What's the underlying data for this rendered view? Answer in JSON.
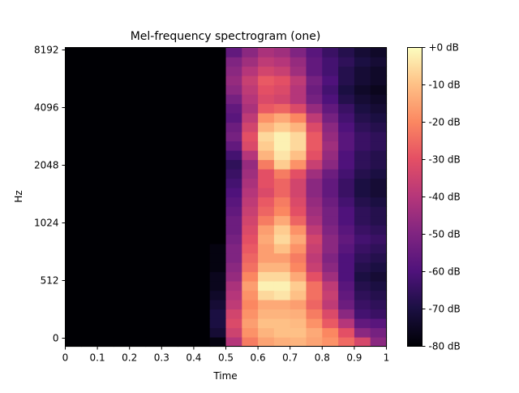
{
  "chart_data": {
    "type": "heatmap",
    "title": "Mel-frequency spectrogram (one)",
    "xlabel": "Time",
    "ylabel": "Hz",
    "x_range": [
      0,
      1
    ],
    "x_ticks": [
      "0",
      "0.1",
      "0.2",
      "0.3",
      "0.4",
      "0.5",
      "0.6",
      "0.7",
      "0.8",
      "0.9",
      "1"
    ],
    "y_ticks": [
      "0",
      "512",
      "1024",
      "2048",
      "4096",
      "8192"
    ],
    "colorbar": {
      "colormap": "magma",
      "range_db": [
        -80,
        0
      ],
      "ticks": [
        "+0 dB",
        "-10 dB",
        "-20 dB",
        "-30 dB",
        "-40 dB",
        "-50 dB",
        "-60 dB",
        "-70 dB",
        "-80 dB"
      ]
    },
    "grid": false,
    "note_values": "dB levels per time frame (columns) and mel band (rows, bottom to top), estimated from colour",
    "time_frames": 20,
    "mel_bands": 32,
    "values_db": [
      [
        -80,
        -80,
        -80,
        -80,
        -80,
        -80,
        -80,
        -80,
        -80,
        -78,
        -40,
        -22,
        -15,
        -13,
        -12,
        -15,
        -18,
        -25,
        -33,
        -48
      ],
      [
        -80,
        -80,
        -80,
        -80,
        -80,
        -80,
        -80,
        -80,
        -80,
        -72,
        -35,
        -18,
        -12,
        -10,
        -10,
        -14,
        -20,
        -30,
        -48,
        -52
      ],
      [
        -80,
        -80,
        -80,
        -80,
        -80,
        -80,
        -80,
        -80,
        -80,
        -70,
        -32,
        -16,
        -10,
        -10,
        -11,
        -18,
        -28,
        -40,
        -56,
        -58
      ],
      [
        -80,
        -80,
        -80,
        -80,
        -80,
        -80,
        -80,
        -80,
        -80,
        -70,
        -34,
        -18,
        -12,
        -12,
        -13,
        -22,
        -32,
        -48,
        -62,
        -64
      ],
      [
        -80,
        -80,
        -80,
        -80,
        -80,
        -80,
        -80,
        -80,
        -80,
        -72,
        -38,
        -20,
        -14,
        -14,
        -16,
        -26,
        -38,
        -54,
        -64,
        -66
      ],
      [
        -80,
        -80,
        -80,
        -80,
        -80,
        -80,
        -80,
        -80,
        -80,
        -74,
        -40,
        -18,
        -6,
        -4,
        -10,
        -24,
        -36,
        -56,
        -66,
        -68
      ],
      [
        -80,
        -80,
        -80,
        -80,
        -80,
        -80,
        -80,
        -80,
        -80,
        -76,
        -42,
        -16,
        -2,
        -2,
        -8,
        -24,
        -38,
        -58,
        -68,
        -70
      ],
      [
        -80,
        -80,
        -80,
        -80,
        -80,
        -80,
        -80,
        -80,
        -80,
        -76,
        -46,
        -20,
        -6,
        -6,
        -14,
        -30,
        -44,
        -60,
        -70,
        -72
      ],
      [
        -80,
        -80,
        -80,
        -80,
        -80,
        -80,
        -80,
        -80,
        -80,
        -78,
        -48,
        -24,
        -12,
        -12,
        -20,
        -36,
        -48,
        -60,
        -68,
        -70
      ],
      [
        -80,
        -80,
        -80,
        -80,
        -80,
        -80,
        -80,
        -80,
        -80,
        -78,
        -50,
        -26,
        -16,
        -16,
        -22,
        -38,
        -50,
        -60,
        -66,
        -68
      ],
      [
        -80,
        -80,
        -80,
        -80,
        -80,
        -80,
        -80,
        -80,
        -80,
        -78,
        -50,
        -28,
        -16,
        -10,
        -18,
        -36,
        -48,
        -58,
        -64,
        -66
      ],
      [
        -80,
        -80,
        -80,
        -80,
        -80,
        -80,
        -80,
        -80,
        -80,
        -80,
        -52,
        -30,
        -14,
        -6,
        -14,
        -34,
        -48,
        -56,
        -62,
        -64
      ],
      [
        -80,
        -80,
        -80,
        -80,
        -80,
        -80,
        -80,
        -80,
        -80,
        -80,
        -54,
        -32,
        -16,
        -8,
        -18,
        -38,
        -50,
        -58,
        -64,
        -66
      ],
      [
        -80,
        -80,
        -80,
        -80,
        -80,
        -80,
        -80,
        -80,
        -80,
        -80,
        -54,
        -34,
        -22,
        -14,
        -26,
        -42,
        -52,
        -60,
        -66,
        -68
      ],
      [
        -80,
        -80,
        -80,
        -80,
        -80,
        -80,
        -80,
        -80,
        -80,
        -80,
        -56,
        -36,
        -26,
        -20,
        -30,
        -44,
        -52,
        -60,
        -66,
        -68
      ],
      [
        -80,
        -80,
        -80,
        -80,
        -80,
        -80,
        -80,
        -80,
        -80,
        -80,
        -58,
        -38,
        -28,
        -22,
        -32,
        -46,
        -54,
        -62,
        -68,
        -70
      ],
      [
        -80,
        -80,
        -80,
        -80,
        -80,
        -80,
        -80,
        -80,
        -80,
        -80,
        -60,
        -40,
        -32,
        -26,
        -34,
        -48,
        -56,
        -64,
        -70,
        -72
      ],
      [
        -80,
        -80,
        -80,
        -80,
        -80,
        -80,
        -80,
        -80,
        -80,
        -80,
        -62,
        -42,
        -30,
        -26,
        -34,
        -48,
        -56,
        -64,
        -70,
        -72
      ],
      [
        -80,
        -80,
        -80,
        -80,
        -80,
        -80,
        -80,
        -80,
        -80,
        -80,
        -64,
        -44,
        -30,
        -22,
        -30,
        -44,
        -54,
        -62,
        -68,
        -70
      ],
      [
        -80,
        -80,
        -80,
        -80,
        -80,
        -80,
        -80,
        -80,
        -80,
        -80,
        -66,
        -46,
        -22,
        -8,
        -18,
        -36,
        -48,
        -60,
        -66,
        -68
      ],
      [
        -80,
        -80,
        -80,
        -80,
        -80,
        -80,
        -80,
        -80,
        -80,
        -80,
        -62,
        -40,
        -12,
        -4,
        -10,
        -30,
        -46,
        -60,
        -66,
        -68
      ],
      [
        -80,
        -80,
        -80,
        -80,
        -80,
        -80,
        -80,
        -80,
        -80,
        -80,
        -56,
        -32,
        -8,
        -2,
        -6,
        -28,
        -44,
        -58,
        -64,
        -66
      ],
      [
        -80,
        -80,
        -80,
        -80,
        -80,
        -80,
        -80,
        -80,
        -80,
        -80,
        -52,
        -30,
        -6,
        -2,
        -6,
        -28,
        -46,
        -58,
        -64,
        -66
      ],
      [
        -80,
        -80,
        -80,
        -80,
        -80,
        -80,
        -80,
        -80,
        -80,
        -80,
        -54,
        -34,
        -12,
        -8,
        -12,
        -32,
        -48,
        -60,
        -66,
        -68
      ],
      [
        -80,
        -80,
        -80,
        -80,
        -80,
        -80,
        -80,
        -80,
        -80,
        -80,
        -58,
        -38,
        -18,
        -14,
        -20,
        -38,
        -52,
        -62,
        -68,
        -70
      ],
      [
        -80,
        -80,
        -80,
        -80,
        -80,
        -80,
        -80,
        -80,
        -80,
        -80,
        -56,
        -42,
        -28,
        -26,
        -32,
        -46,
        -56,
        -64,
        -70,
        -72
      ],
      [
        -80,
        -80,
        -80,
        -80,
        -80,
        -80,
        -80,
        -80,
        -80,
        -80,
        -52,
        -40,
        -32,
        -34,
        -40,
        -52,
        -60,
        -68,
        -72,
        -74
      ],
      [
        -80,
        -80,
        -80,
        -80,
        -80,
        -80,
        -80,
        -80,
        -80,
        -80,
        -48,
        -38,
        -30,
        -32,
        -40,
        -54,
        -62,
        -70,
        -74,
        -76
      ],
      [
        -80,
        -80,
        -80,
        -80,
        -80,
        -80,
        -80,
        -80,
        -80,
        -80,
        -46,
        -36,
        -28,
        -30,
        -38,
        -52,
        -60,
        -68,
        -72,
        -74
      ],
      [
        -80,
        -80,
        -80,
        -80,
        -80,
        -80,
        -80,
        -80,
        -80,
        -80,
        -48,
        -40,
        -34,
        -36,
        -44,
        -56,
        -62,
        -68,
        -72,
        -74
      ],
      [
        -80,
        -80,
        -80,
        -80,
        -80,
        -80,
        -80,
        -80,
        -80,
        -80,
        -50,
        -44,
        -38,
        -40,
        -46,
        -56,
        -62,
        -66,
        -70,
        -72
      ],
      [
        -80,
        -80,
        -80,
        -80,
        -80,
        -80,
        -80,
        -80,
        -80,
        -80,
        -56,
        -48,
        -42,
        -44,
        -50,
        -58,
        -64,
        -68,
        -72,
        -74
      ]
    ]
  }
}
